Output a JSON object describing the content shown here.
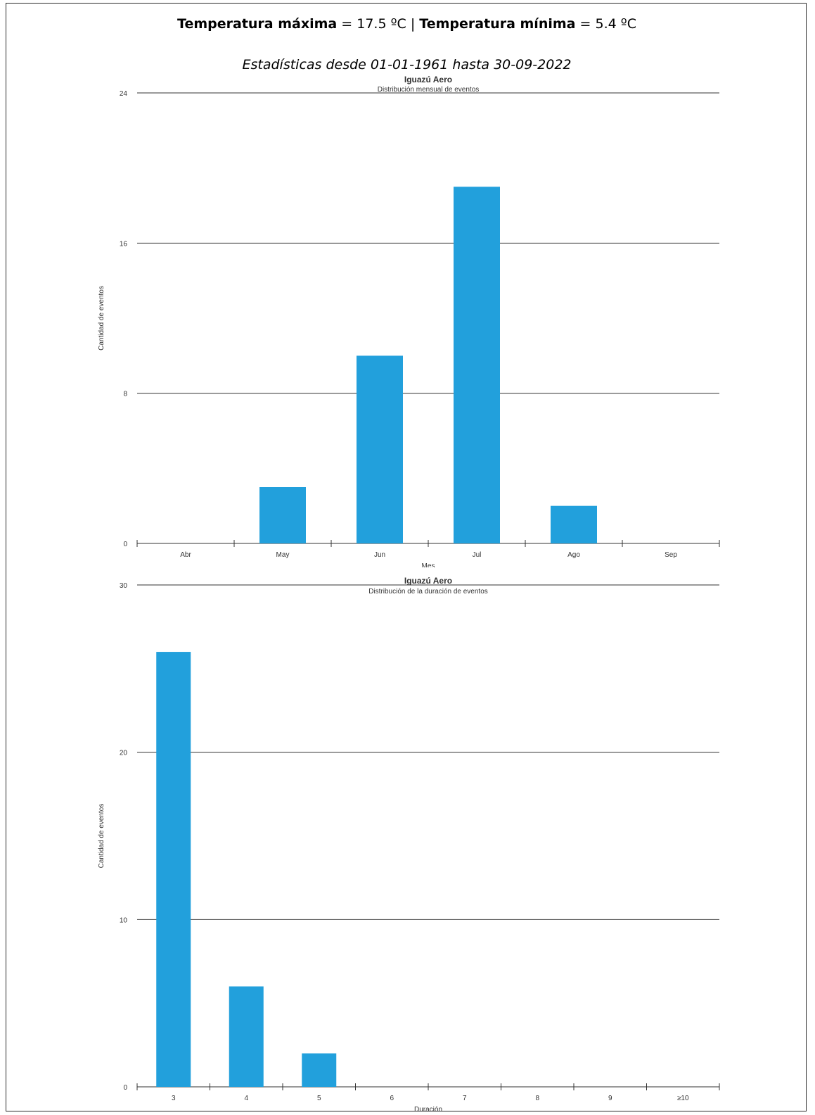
{
  "header": {
    "max_label": "Temperatura máxima",
    "max_value": " = 17.5 ºC | ",
    "min_label": "Temperatura mínima",
    "min_value": " = 5.4 ºC",
    "period": "Estadísticas desde 01-01-1961 hasta 30-09-2022"
  },
  "colors": {
    "bar": "#22a0dc",
    "grid": "#333333"
  },
  "chart_data": [
    {
      "type": "bar",
      "title": "Iguazú Aero",
      "subtitle": "Distribución mensual de eventos",
      "xlabel": "Mes",
      "ylabel": "Cantidad de eventos",
      "categories": [
        "Abr",
        "May",
        "Jun",
        "Jul",
        "Ago",
        "Sep"
      ],
      "values": [
        0,
        3,
        10,
        19,
        2,
        0
      ],
      "ylim": [
        0,
        24
      ],
      "yticks": [
        0,
        8,
        16,
        24
      ],
      "grid": true,
      "legend": "none"
    },
    {
      "type": "bar",
      "title": "Iguazú Aero",
      "subtitle": "Distribución de la duración de eventos",
      "xlabel": "Duración",
      "ylabel": "Cantidad de eventos",
      "categories": [
        "3",
        "4",
        "5",
        "6",
        "7",
        "8",
        "9",
        "≥10"
      ],
      "values": [
        26,
        6,
        2,
        0,
        0,
        0,
        0,
        0
      ],
      "ylim": [
        0,
        30
      ],
      "yticks": [
        0,
        10,
        20,
        30
      ],
      "grid": true,
      "legend": "none"
    }
  ]
}
